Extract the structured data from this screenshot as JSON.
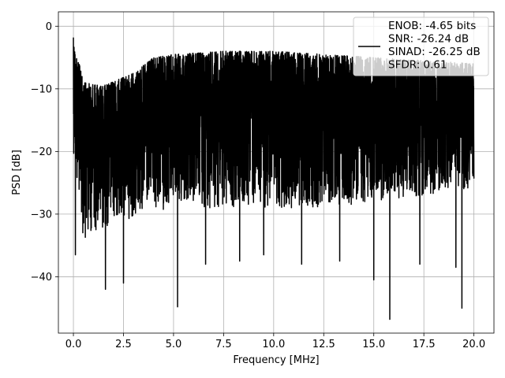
{
  "chart_data": {
    "type": "line",
    "xlabel": "Frequency [MHz]",
    "ylabel": "PSD [dB]",
    "xlim": [
      -0.75,
      21.0
    ],
    "ylim": [
      -49.0,
      2.3
    ],
    "xticks": [
      0.0,
      2.5,
      5.0,
      7.5,
      10.0,
      12.5,
      15.0,
      17.5,
      20.0
    ],
    "xtick_labels": [
      "0.0",
      "2.5",
      "5.0",
      "7.5",
      "10.0",
      "12.5",
      "15.0",
      "17.5",
      "20.0"
    ],
    "yticks": [
      0,
      -10,
      -20,
      -30,
      -40
    ],
    "ytick_labels": [
      "0",
      "−10",
      "−20",
      "−30",
      "−40"
    ],
    "grid": true,
    "legend_position": "upper-right",
    "line_color": "#000000",
    "series": [
      {
        "name": "ENOB: -4.65 bits\nSNR: -26.24 dB\nSINAD: -26.25 dB\nSFDR: 0.61",
        "legend_lines": [
          "ENOB: -4.65 bits",
          "SNR: -26.24 dB",
          "SINAD: -26.25 dB",
          "SFDR: 0.61"
        ],
        "x_range": [
          0.0,
          20.0
        ],
        "upper_envelope": [
          [
            0.0,
            -1.8
          ],
          [
            0.5,
            -9.0
          ],
          [
            1.5,
            -9.5
          ],
          [
            3.0,
            -7.5
          ],
          [
            4.0,
            -5.0
          ],
          [
            5.0,
            -4.5
          ],
          [
            7.5,
            -4.0
          ],
          [
            10.0,
            -4.0
          ],
          [
            12.5,
            -4.5
          ],
          [
            15.0,
            -5.0
          ],
          [
            17.5,
            -5.5
          ],
          [
            20.0,
            -6.0
          ]
        ],
        "lower_envelope": [
          [
            0.0,
            -20.0
          ],
          [
            0.5,
            -34.0
          ],
          [
            1.0,
            -33.0
          ],
          [
            2.5,
            -31.0
          ],
          [
            5.0,
            -29.0
          ],
          [
            7.5,
            -29.0
          ],
          [
            10.0,
            -29.0
          ],
          [
            12.5,
            -29.0
          ],
          [
            15.0,
            -28.0
          ],
          [
            17.5,
            -27.0
          ],
          [
            20.0,
            -26.0
          ]
        ],
        "deep_minima": [
          [
            0.1,
            -36.5
          ],
          [
            1.6,
            -42.0
          ],
          [
            2.5,
            -41.0
          ],
          [
            5.2,
            -44.8
          ],
          [
            6.6,
            -38.0
          ],
          [
            8.3,
            -37.5
          ],
          [
            9.5,
            -36.5
          ],
          [
            11.4,
            -38.0
          ],
          [
            13.3,
            -37.5
          ],
          [
            15.0,
            -40.5
          ],
          [
            15.8,
            -46.8
          ],
          [
            17.3,
            -38.0
          ],
          [
            19.1,
            -38.5
          ],
          [
            19.4,
            -45.0
          ]
        ]
      }
    ]
  }
}
